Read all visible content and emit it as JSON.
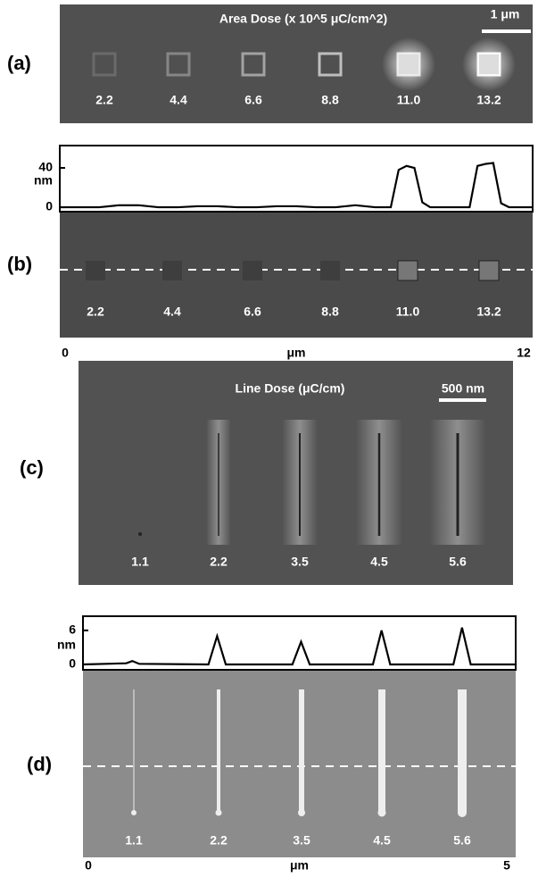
{
  "panels": [
    {
      "label": "(a)",
      "title": "Area Dose (x 10^5 μC/cm^2)",
      "scale_bar": "1 μm",
      "doses": [
        "2.2",
        "4.4",
        "6.6",
        "8.8",
        "11.0",
        "13.2"
      ]
    },
    {
      "label": "(b)",
      "doses": [
        "2.2",
        "4.4",
        "6.6",
        "8.8",
        "11.0",
        "13.2"
      ],
      "profile": {
        "y_label": "nm",
        "x_label": "μm",
        "ylim": [
          -4.5,
          62.7
        ],
        "yticks": [
          0,
          40
        ],
        "xlim": [
          0,
          12
        ],
        "xticks": [
          0,
          12
        ],
        "x": [
          0,
          1,
          1.5,
          2,
          2.5,
          3,
          3.5,
          4,
          4.5,
          5,
          5.5,
          6,
          6.5,
          7,
          7.5,
          8,
          8.4,
          8.6,
          8.8,
          9.0,
          9.2,
          9.4,
          9.8,
          10.2,
          10.4,
          10.6,
          10.8,
          11.0,
          11.2,
          11.4,
          12
        ],
        "values": [
          0,
          0,
          2,
          2,
          0,
          0,
          1,
          1,
          0,
          0,
          1,
          1,
          0,
          0,
          2,
          0,
          0,
          38,
          42,
          40,
          5,
          0,
          0,
          0,
          0,
          42,
          44,
          45,
          4,
          0,
          0
        ]
      }
    },
    {
      "label": "(c)",
      "title": "Line Dose (μC/cm)",
      "scale_bar": "500 nm",
      "doses": [
        "1.1",
        "2.2",
        "3.5",
        "4.5",
        "5.6"
      ]
    },
    {
      "label": "(d)",
      "doses": [
        "1.1",
        "2.2",
        "3.5",
        "4.5",
        "5.6"
      ],
      "profile": {
        "y_label": "nm",
        "x_label": "μm",
        "ylim": [
          -0.95,
          8.5
        ],
        "yticks": [
          0,
          6
        ],
        "xlim": [
          0,
          5
        ],
        "xticks": [
          0,
          5
        ],
        "x": [
          0,
          0.5,
          0.57,
          0.65,
          1.45,
          1.55,
          1.65,
          2.42,
          2.52,
          2.62,
          3.35,
          3.45,
          3.55,
          4.28,
          4.38,
          4.48,
          5
        ],
        "values": [
          0,
          0.2,
          0.6,
          0.1,
          0,
          5,
          0,
          0,
          4,
          0,
          0,
          6,
          0,
          0,
          6.5,
          0,
          0
        ]
      }
    }
  ]
}
